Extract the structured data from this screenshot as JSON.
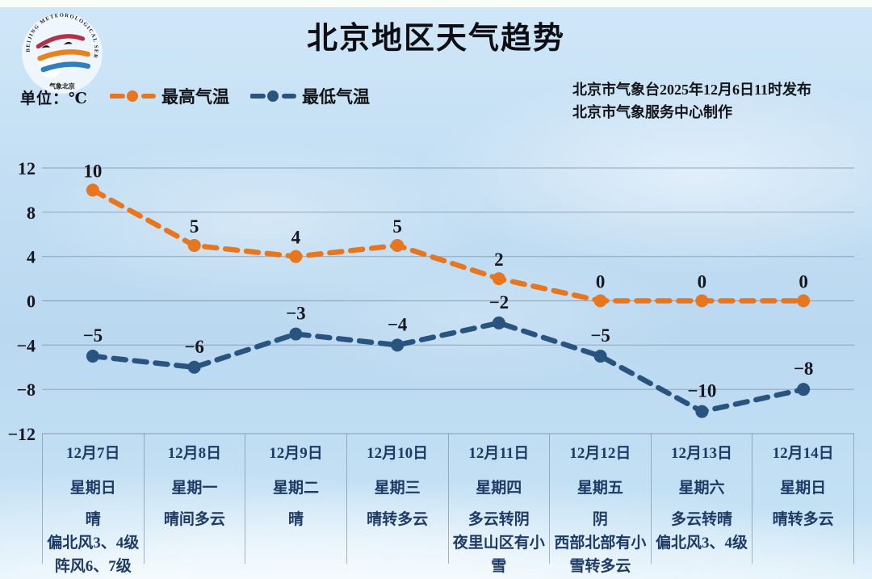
{
  "header": {
    "title": "北京地区天气趋势",
    "unit_label": "单位：℃",
    "issue_line1": "北京市气象台2025年12月6日11时发布",
    "issue_line2": "北京市气象服务中心制作",
    "logo_ring_text": "BEIJING METEOROLOGICAL SERVICE",
    "logo_bottom_text": "气象北京"
  },
  "legend": [
    {
      "label": "最高气温",
      "color": "#e8761e"
    },
    {
      "label": "最低气温",
      "color": "#2a5480"
    }
  ],
  "chart_data": {
    "type": "line",
    "title": "北京地区天气趋势",
    "x": [
      "12月7日",
      "12月8日",
      "12月9日",
      "12月10日",
      "12月11日",
      "12月12日",
      "12月13日",
      "12月14日"
    ],
    "series": [
      {
        "name": "最高气温",
        "color": "#e8761e",
        "values": [
          10,
          5,
          4,
          5,
          2,
          0,
          0,
          0
        ]
      },
      {
        "name": "最低气温",
        "color": "#2a5480",
        "values": [
          -5,
          -6,
          -3,
          -4,
          -2,
          -5,
          -10,
          -8
        ]
      }
    ],
    "ylabel": "℃",
    "ylim": [
      -12,
      12
    ],
    "yticks": [
      12,
      8,
      4,
      0,
      -4,
      -8,
      -12
    ],
    "grid": true,
    "line_style": "dashed",
    "legend_position": "top-left"
  },
  "table": {
    "columns": [
      {
        "date": "12月7日",
        "weekday": "星期日",
        "lines": [
          "晴",
          "偏北风3、4级",
          "阵风6、7级"
        ]
      },
      {
        "date": "12月8日",
        "weekday": "星期一",
        "lines": [
          "晴间多云"
        ]
      },
      {
        "date": "12月9日",
        "weekday": "星期二",
        "lines": [
          "晴"
        ]
      },
      {
        "date": "12月10日",
        "weekday": "星期三",
        "lines": [
          "晴转多云"
        ]
      },
      {
        "date": "12月11日",
        "weekday": "星期四",
        "lines": [
          "多云转阴",
          "夜里山区有小雪"
        ]
      },
      {
        "date": "12月12日",
        "weekday": "星期五",
        "lines": [
          "阴",
          "西部北部有小雪转多云"
        ]
      },
      {
        "date": "12月13日",
        "weekday": "星期六",
        "lines": [
          "多云转晴",
          "偏北风3、4级"
        ]
      },
      {
        "date": "12月14日",
        "weekday": "星期日",
        "lines": [
          "晴转多云"
        ]
      }
    ]
  },
  "colors": {
    "high_series": "#e8761e",
    "low_series": "#2a5480",
    "grid_line": "#69788f",
    "table_text": "#1e3a66",
    "label_text": "#15171c",
    "sky": "#c2def3"
  }
}
